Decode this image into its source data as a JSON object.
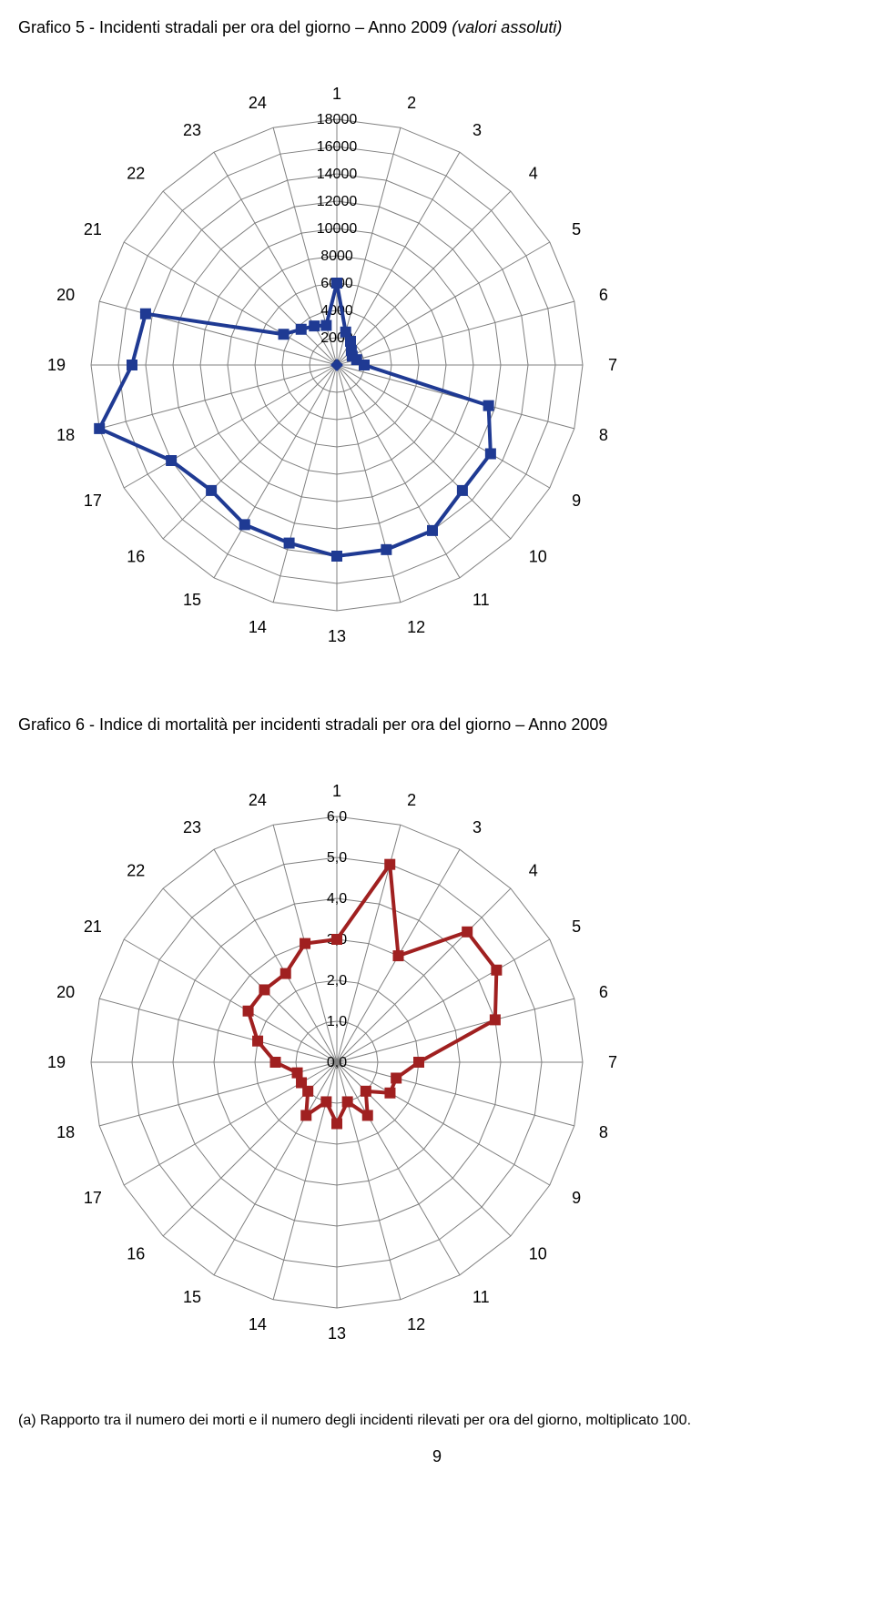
{
  "chart5": {
    "title_main": "Grafico 5  - Incidenti stradali per ora del giorno – Anno 2009 ",
    "title_italic": "(valori assoluti)",
    "type": "radar",
    "categories": [
      "1",
      "2",
      "3",
      "4",
      "5",
      "6",
      "7",
      "8",
      "9",
      "10",
      "11",
      "12",
      "13",
      "14",
      "15",
      "16",
      "17",
      "18",
      "19",
      "20",
      "21",
      "22",
      "23",
      "24"
    ],
    "values": [
      6000,
      2500,
      2000,
      1500,
      1300,
      1500,
      2000,
      11500,
      13000,
      13000,
      14000,
      14000,
      14000,
      13500,
      13500,
      13000,
      14000,
      18000,
      15000,
      14500,
      4500,
      3700,
      3300,
      3000
    ],
    "axis_max": 18000,
    "axis_step": 2000,
    "tick_labels": [
      "0",
      "2000",
      "4000",
      "6000",
      "8000",
      "10000",
      "12000",
      "14000",
      "16000",
      "18000"
    ],
    "line_color": "#1f3a93",
    "line_width": 4,
    "marker_size": 6,
    "grid_color": "#808080",
    "label_fontsize": 18,
    "tick_fontsize": 16,
    "background_color": "#ffffff",
    "chart_size": 700,
    "radius": 270,
    "center_marker": true
  },
  "chart6": {
    "title_main": "Grafico 6  - Indice di mortalità per incidenti stradali per ora del giorno – Anno 2009",
    "type": "radar",
    "categories": [
      "1",
      "2",
      "3",
      "4",
      "5",
      "6",
      "7",
      "8",
      "9",
      "10",
      "11",
      "12",
      "13",
      "14",
      "15",
      "16",
      "17",
      "18",
      "19",
      "20",
      "21",
      "22",
      "23",
      "24"
    ],
    "values": [
      3.0,
      5.0,
      3.0,
      4.5,
      4.5,
      4.0,
      2.0,
      1.5,
      1.5,
      1.0,
      1.5,
      1.0,
      1.5,
      1.0,
      1.5,
      1.0,
      1.0,
      1.0,
      1.5,
      2.0,
      2.5,
      2.5,
      2.5,
      3.0
    ],
    "axis_max": 6.0,
    "axis_step": 1.0,
    "tick_labels": [
      "0,0",
      "1,0",
      "2,0",
      "3,0",
      "4,0",
      "5,0",
      "6,0"
    ],
    "line_color": "#a02020",
    "line_width": 4,
    "marker_size": 6,
    "grid_color": "#808080",
    "label_fontsize": 18,
    "tick_fontsize": 16,
    "background_color": "#ffffff",
    "chart_size": 700,
    "radius": 270,
    "center_marker": false
  },
  "footnote": "(a) Rapporto tra il numero dei morti e il numero degli incidenti rilevati per ora del giorno, moltiplicato 100.",
  "page_number": "9"
}
